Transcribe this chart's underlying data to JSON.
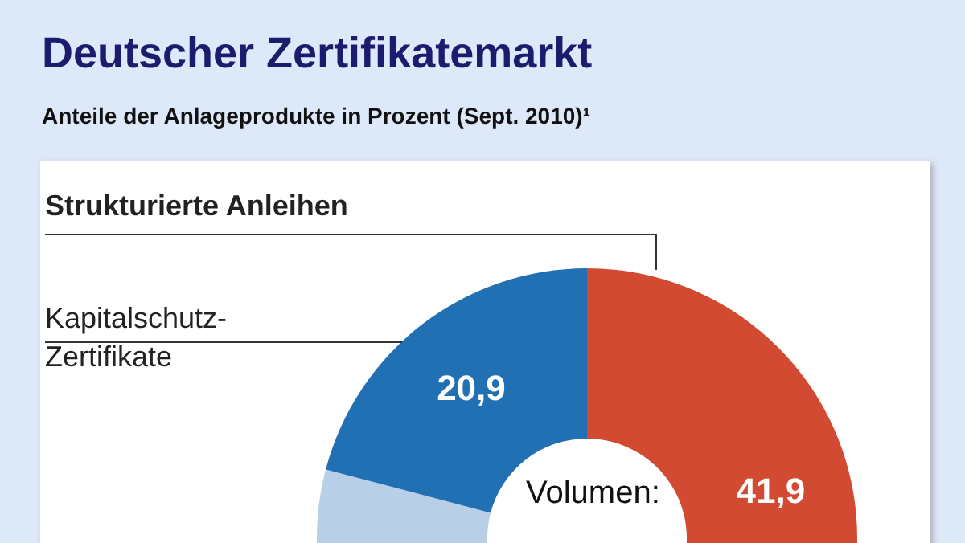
{
  "chart_data": {
    "type": "donut",
    "title": "Deutscher Zertifikatemarkt",
    "subtitle": "Anteile der Anlageprodukte in Prozent (Sept. 2010)¹",
    "categories": [
      "Strukturierte Anleihen",
      null,
      "Kapitalschutz-Zertifikate"
    ],
    "values": [
      41.9,
      37.2,
      20.9
    ],
    "colors": [
      "#d24a32",
      "#b9cfe8",
      "#2170b3"
    ],
    "value_labels": [
      "41,9",
      null,
      "20,9"
    ],
    "annotations": [
      "Volumen:"
    ]
  }
}
